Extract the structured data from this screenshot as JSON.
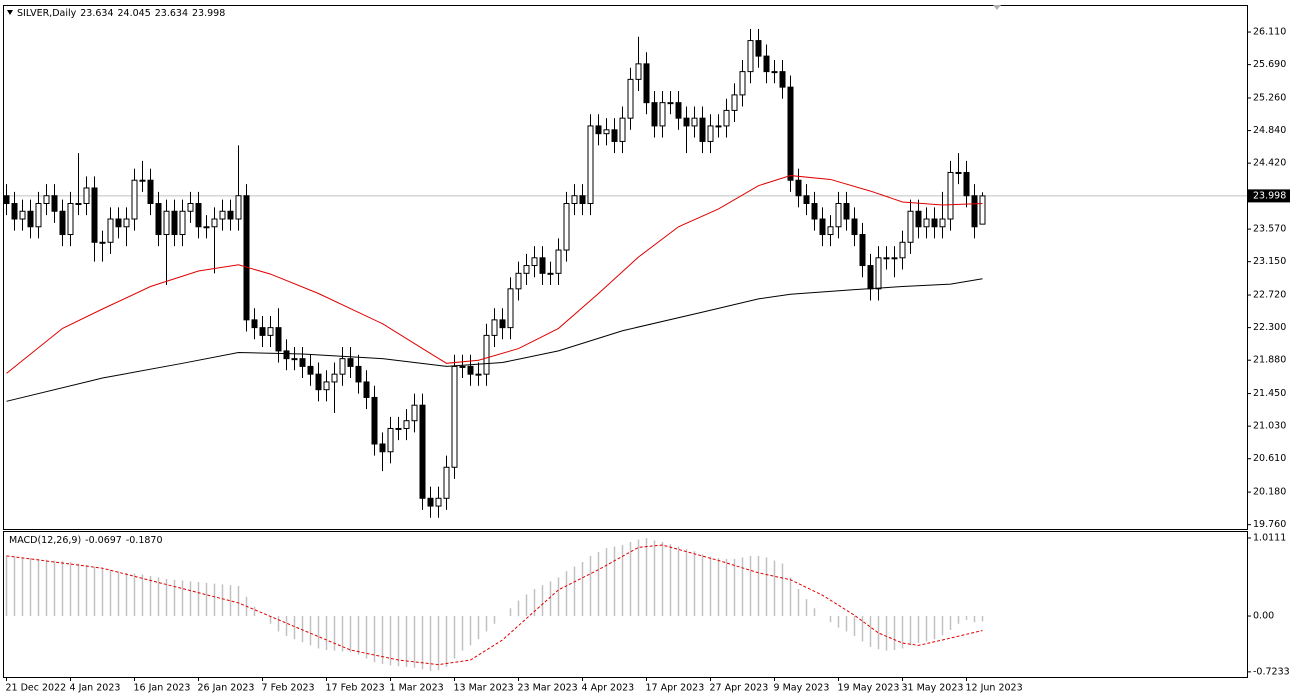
{
  "chart_data": {
    "type": "candlestick",
    "title": "SILVER,Daily",
    "up_color": "#ffffff",
    "down_color": "#000000",
    "candle_border": "#000000",
    "grid": false,
    "ylim": [
      19.73,
      26.42
    ],
    "yticks": [
      {
        "value": 26.11,
        "label": "26.110"
      },
      {
        "value": 25.69,
        "label": "25.690"
      },
      {
        "value": 25.26,
        "label": "25.260"
      },
      {
        "value": 24.84,
        "label": "24.840"
      },
      {
        "value": 24.42,
        "label": "24.420"
      },
      {
        "value": 23.57,
        "label": "23.570"
      },
      {
        "value": 23.15,
        "label": "23.150"
      },
      {
        "value": 22.72,
        "label": "22.720"
      },
      {
        "value": 22.3,
        "label": "22.300"
      },
      {
        "value": 21.88,
        "label": "21.880"
      },
      {
        "value": 21.45,
        "label": "21.450"
      },
      {
        "value": 21.03,
        "label": "21.030"
      },
      {
        "value": 20.61,
        "label": "20.610"
      },
      {
        "value": 20.18,
        "label": "20.180"
      },
      {
        "value": 19.76,
        "label": "19.760"
      }
    ],
    "categories": [
      "21 Dec 2022",
      null,
      null,
      null,
      null,
      null,
      null,
      null,
      "4 Jan 2023",
      null,
      null,
      null,
      null,
      null,
      null,
      null,
      "16 Jan 2023",
      null,
      null,
      null,
      null,
      null,
      null,
      null,
      "26 Jan 2023",
      null,
      null,
      null,
      null,
      null,
      null,
      null,
      "7 Feb 2023",
      null,
      null,
      null,
      null,
      null,
      null,
      null,
      "17 Feb 2023",
      null,
      null,
      null,
      null,
      null,
      null,
      null,
      "1 Mar 2023",
      null,
      null,
      null,
      null,
      null,
      null,
      null,
      "13 Mar 2023",
      null,
      null,
      null,
      null,
      null,
      null,
      null,
      "23 Mar 2023",
      null,
      null,
      null,
      null,
      null,
      null,
      null,
      "4 Apr 2023",
      null,
      null,
      null,
      null,
      null,
      null,
      null,
      "17 Apr 2023",
      null,
      null,
      null,
      null,
      null,
      null,
      null,
      "27 Apr 2023",
      null,
      null,
      null,
      null,
      null,
      null,
      null,
      "9 May 2023",
      null,
      null,
      null,
      null,
      null,
      null,
      null,
      "19 May 2023",
      null,
      null,
      null,
      null,
      null,
      null,
      null,
      "31 May 2023",
      null,
      null,
      null,
      null,
      null,
      null,
      null,
      "12 Jun 2023",
      null,
      null
    ],
    "candles": [
      [
        24.0,
        24.15,
        23.75,
        23.9
      ],
      [
        23.9,
        24.05,
        23.55,
        23.7
      ],
      [
        23.7,
        23.95,
        23.55,
        23.8
      ],
      [
        23.8,
        23.95,
        23.45,
        23.6
      ],
      [
        23.6,
        24.05,
        23.45,
        23.9
      ],
      [
        23.9,
        24.15,
        23.75,
        24.0
      ],
      [
        24.0,
        24.15,
        23.65,
        23.8
      ],
      [
        23.8,
        23.95,
        23.35,
        23.5
      ],
      [
        23.5,
        24.05,
        23.35,
        23.9
      ],
      [
        23.9,
        24.55,
        23.75,
        23.9
      ],
      [
        23.9,
        24.25,
        23.75,
        24.1
      ],
      [
        24.1,
        24.25,
        23.15,
        23.4
      ],
      [
        23.4,
        23.55,
        23.15,
        23.4
      ],
      [
        23.4,
        23.85,
        23.25,
        23.7
      ],
      [
        23.7,
        23.85,
        23.45,
        23.6
      ],
      [
        23.6,
        23.85,
        23.35,
        23.7
      ],
      [
        23.7,
        24.35,
        23.55,
        24.2
      ],
      [
        24.2,
        24.45,
        24.05,
        24.2
      ],
      [
        24.2,
        24.35,
        23.75,
        23.9
      ],
      [
        23.9,
        24.05,
        23.35,
        23.5
      ],
      [
        23.5,
        23.95,
        22.85,
        23.8
      ],
      [
        23.8,
        23.95,
        23.35,
        23.5
      ],
      [
        23.5,
        23.95,
        23.35,
        23.8
      ],
      [
        23.8,
        24.05,
        23.65,
        23.9
      ],
      [
        23.9,
        24.05,
        23.45,
        23.6
      ],
      [
        23.6,
        23.75,
        23.45,
        23.6
      ],
      [
        23.6,
        23.85,
        23.0,
        23.7
      ],
      [
        23.7,
        23.95,
        23.55,
        23.8
      ],
      [
        23.8,
        23.95,
        23.55,
        23.7
      ],
      [
        23.7,
        24.65,
        23.55,
        24.0
      ],
      [
        24.0,
        24.15,
        22.25,
        22.4
      ],
      [
        22.4,
        22.55,
        22.15,
        22.3
      ],
      [
        22.3,
        22.45,
        22.05,
        22.2
      ],
      [
        22.2,
        22.45,
        22.05,
        22.3
      ],
      [
        22.3,
        22.55,
        21.85,
        22.0
      ],
      [
        22.0,
        22.15,
        21.75,
        21.9
      ],
      [
        21.9,
        22.05,
        21.75,
        21.9
      ],
      [
        21.9,
        22.05,
        21.65,
        21.8
      ],
      [
        21.8,
        21.95,
        21.55,
        21.7
      ],
      [
        21.7,
        21.85,
        21.35,
        21.5
      ],
      [
        21.5,
        21.75,
        21.35,
        21.6
      ],
      [
        21.6,
        21.85,
        21.2,
        21.7
      ],
      [
        21.7,
        22.05,
        21.55,
        21.9
      ],
      [
        21.9,
        22.05,
        21.65,
        21.8
      ],
      [
        21.8,
        21.95,
        21.45,
        21.6
      ],
      [
        21.6,
        21.75,
        21.25,
        21.4
      ],
      [
        21.4,
        21.55,
        20.65,
        20.8
      ],
      [
        20.8,
        20.95,
        20.45,
        20.7
      ],
      [
        20.7,
        21.15,
        20.55,
        21.0
      ],
      [
        21.0,
        21.15,
        20.85,
        21.0
      ],
      [
        21.0,
        21.25,
        20.85,
        21.1
      ],
      [
        21.1,
        21.45,
        20.95,
        21.3
      ],
      [
        21.3,
        21.45,
        19.95,
        20.1
      ],
      [
        20.1,
        20.25,
        19.85,
        20.0
      ],
      [
        20.0,
        20.25,
        19.85,
        20.1
      ],
      [
        20.1,
        20.65,
        19.95,
        20.5
      ],
      [
        20.5,
        21.95,
        20.35,
        21.8
      ],
      [
        21.8,
        21.95,
        21.65,
        21.8
      ],
      [
        21.8,
        21.95,
        21.55,
        21.7
      ],
      [
        21.7,
        21.85,
        21.55,
        21.7
      ],
      [
        21.7,
        22.35,
        21.55,
        22.2
      ],
      [
        22.2,
        22.55,
        22.05,
        22.4
      ],
      [
        22.4,
        22.55,
        22.15,
        22.3
      ],
      [
        22.3,
        22.95,
        22.15,
        22.8
      ],
      [
        22.8,
        23.15,
        22.65,
        23.0
      ],
      [
        23.0,
        23.25,
        22.85,
        23.1
      ],
      [
        23.1,
        23.35,
        22.95,
        23.2
      ],
      [
        23.2,
        23.35,
        22.85,
        23.0
      ],
      [
        23.0,
        23.15,
        22.85,
        23.0
      ],
      [
        23.0,
        23.45,
        22.85,
        23.3
      ],
      [
        23.3,
        24.05,
        23.15,
        23.9
      ],
      [
        23.9,
        24.15,
        23.75,
        24.0
      ],
      [
        24.0,
        24.15,
        23.75,
        23.9
      ],
      [
        23.9,
        25.05,
        23.75,
        24.9
      ],
      [
        24.9,
        25.05,
        24.65,
        24.8
      ],
      [
        24.8,
        25.0,
        24.65,
        24.85
      ],
      [
        24.85,
        25.0,
        24.55,
        24.7
      ],
      [
        24.7,
        25.15,
        24.55,
        25.0
      ],
      [
        25.0,
        25.65,
        24.85,
        25.5
      ],
      [
        25.5,
        26.05,
        25.35,
        25.7
      ],
      [
        25.7,
        25.85,
        25.05,
        25.2
      ],
      [
        25.2,
        25.35,
        24.75,
        24.9
      ],
      [
        24.9,
        25.35,
        24.75,
        25.2
      ],
      [
        25.2,
        25.35,
        25.05,
        25.2
      ],
      [
        25.2,
        25.35,
        24.85,
        25.0
      ],
      [
        25.0,
        25.15,
        24.55,
        24.9
      ],
      [
        24.9,
        25.15,
        24.75,
        25.0
      ],
      [
        25.0,
        25.15,
        24.55,
        24.7
      ],
      [
        24.7,
        25.05,
        24.55,
        24.9
      ],
      [
        24.9,
        25.05,
        24.75,
        24.9
      ],
      [
        24.9,
        25.25,
        24.75,
        25.1
      ],
      [
        25.1,
        25.45,
        24.95,
        25.3
      ],
      [
        25.3,
        25.75,
        25.15,
        25.6
      ],
      [
        25.6,
        26.15,
        25.45,
        26.0
      ],
      [
        26.0,
        26.15,
        25.65,
        25.8
      ],
      [
        25.8,
        25.95,
        25.45,
        25.6
      ],
      [
        25.6,
        25.75,
        25.45,
        25.6
      ],
      [
        25.6,
        25.75,
        25.25,
        25.4
      ],
      [
        25.4,
        25.55,
        24.05,
        24.2
      ],
      [
        24.2,
        24.35,
        23.85,
        24.0
      ],
      [
        24.0,
        24.15,
        23.75,
        23.9
      ],
      [
        23.9,
        24.05,
        23.55,
        23.7
      ],
      [
        23.7,
        23.85,
        23.35,
        23.5
      ],
      [
        23.5,
        23.75,
        23.35,
        23.6
      ],
      [
        23.6,
        24.05,
        23.45,
        23.9
      ],
      [
        23.9,
        24.05,
        23.55,
        23.7
      ],
      [
        23.7,
        23.85,
        23.35,
        23.5
      ],
      [
        23.5,
        23.65,
        22.95,
        23.1
      ],
      [
        23.1,
        23.25,
        22.65,
        22.8
      ],
      [
        22.8,
        23.35,
        22.65,
        23.2
      ],
      [
        23.2,
        23.35,
        23.05,
        23.2
      ],
      [
        23.2,
        23.35,
        22.95,
        23.2
      ],
      [
        23.2,
        23.55,
        23.05,
        23.4
      ],
      [
        23.4,
        23.95,
        23.25,
        23.8
      ],
      [
        23.8,
        23.95,
        23.45,
        23.6
      ],
      [
        23.6,
        23.85,
        23.45,
        23.7
      ],
      [
        23.7,
        23.85,
        23.45,
        23.6
      ],
      [
        23.6,
        24.05,
        23.45,
        23.7
      ],
      [
        23.7,
        24.45,
        23.55,
        24.3
      ],
      [
        24.3,
        24.55,
        24.15,
        24.3
      ],
      [
        24.3,
        24.45,
        23.85,
        24.0
      ],
      [
        24.0,
        24.15,
        23.45,
        23.6
      ],
      [
        23.634,
        24.045,
        23.634,
        23.998
      ]
    ],
    "moving_averages": [
      {
        "color": "#e00000",
        "x": [
          0,
          7,
          12,
          18,
          24,
          29,
          33,
          39,
          47,
          52,
          55,
          59,
          64,
          69,
          74,
          79,
          84,
          89,
          94,
          98,
          103,
          108,
          112,
          117,
          122
        ],
        "values": [
          21.71,
          22.29,
          22.54,
          22.83,
          23.03,
          23.11,
          22.99,
          22.74,
          22.35,
          22.03,
          21.84,
          21.88,
          22.03,
          22.29,
          22.74,
          23.21,
          23.6,
          23.83,
          24.13,
          24.26,
          24.21,
          24.06,
          23.92,
          23.88,
          23.9
        ]
      },
      {
        "color": "#000000",
        "x": [
          0,
          12,
          22,
          29,
          37,
          47,
          55,
          62,
          69,
          77,
          87,
          94,
          98,
          106,
          112,
          118,
          122
        ],
        "values": [
          21.35,
          21.65,
          21.84,
          21.98,
          21.96,
          21.9,
          21.8,
          21.85,
          22.0,
          22.26,
          22.5,
          22.67,
          22.73,
          22.79,
          22.83,
          22.86,
          22.93
        ]
      }
    ],
    "macd": {
      "title": "MACD(12,26,9)",
      "ylim": [
        -0.79,
        1.076
      ],
      "yticks": [
        1.0111,
        {
          "value": 0,
          "label": "0.00"
        },
        -0.7233
      ],
      "histogram_color": "#c0c0c0",
      "histogram": [
        0.78,
        0.77,
        0.76,
        0.75,
        0.74,
        0.73,
        0.72,
        0.71,
        0.7,
        0.68,
        0.66,
        0.64,
        0.62,
        0.6,
        0.58,
        0.56,
        0.55,
        0.54,
        0.52,
        0.5,
        0.48,
        0.47,
        0.46,
        0.45,
        0.44,
        0.43,
        0.42,
        0.41,
        0.4,
        0.39,
        0.25,
        0.12,
        0.0,
        -0.1,
        -0.2,
        -0.26,
        -0.3,
        -0.34,
        -0.38,
        -0.42,
        -0.44,
        -0.45,
        -0.46,
        -0.47,
        -0.5,
        -0.55,
        -0.6,
        -0.62,
        -0.64,
        -0.65,
        -0.66,
        -0.67,
        -0.69,
        -0.71,
        -0.7,
        -0.66,
        -0.55,
        -0.45,
        -0.38,
        -0.3,
        -0.2,
        -0.1,
        0.0,
        0.1,
        0.2,
        0.28,
        0.35,
        0.4,
        0.45,
        0.5,
        0.58,
        0.64,
        0.7,
        0.78,
        0.83,
        0.88,
        0.9,
        0.92,
        0.96,
        0.99,
        1.01,
        0.98,
        0.96,
        0.93,
        0.9,
        0.87,
        0.84,
        0.8,
        0.77,
        0.75,
        0.74,
        0.74,
        0.76,
        0.78,
        0.78,
        0.76,
        0.72,
        0.68,
        0.5,
        0.35,
        0.22,
        0.1,
        0.0,
        -0.08,
        -0.15,
        -0.2,
        -0.26,
        -0.33,
        -0.4,
        -0.43,
        -0.45,
        -0.44,
        -0.42,
        -0.38,
        -0.35,
        -0.33,
        -0.3,
        -0.25,
        -0.18,
        -0.1,
        -0.05,
        -0.08,
        -0.0697
      ],
      "signal": {
        "color": "#e00000",
        "x": [
          0,
          12,
          29,
          37,
          43,
          49,
          54,
          58,
          62,
          69,
          74,
          79,
          82,
          89,
          94,
          98,
          102,
          106,
          109,
          112,
          114,
          117,
          122
        ],
        "values": [
          0.78,
          0.62,
          0.17,
          -0.18,
          -0.44,
          -0.57,
          -0.63,
          -0.57,
          -0.31,
          0.34,
          0.6,
          0.89,
          0.92,
          0.72,
          0.56,
          0.47,
          0.27,
          0.01,
          -0.22,
          -0.35,
          -0.38,
          -0.31,
          -0.187
        ],
        "last_label": "-0.1870"
      }
    }
  }
}
